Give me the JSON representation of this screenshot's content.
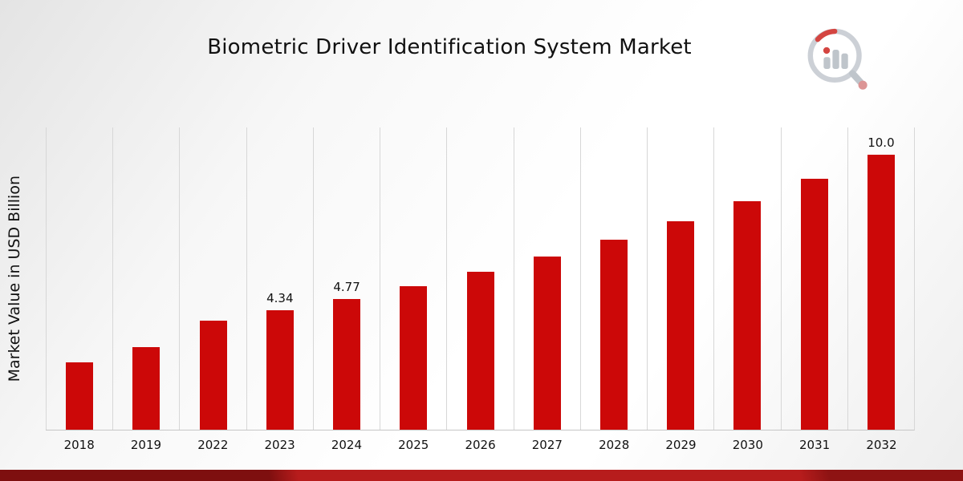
{
  "header": {
    "title": "Biometric Driver Identification System Market"
  },
  "chart_data": {
    "type": "bar",
    "title": "Biometric Driver Identification System Market",
    "xlabel": "",
    "ylabel": "Market Value in USD Billion",
    "categories": [
      "2018",
      "2019",
      "2022",
      "2023",
      "2024",
      "2025",
      "2026",
      "2027",
      "2028",
      "2029",
      "2030",
      "2031",
      "2032"
    ],
    "values": [
      2.45,
      3.0,
      3.96,
      4.34,
      4.77,
      5.23,
      5.74,
      6.3,
      6.91,
      7.58,
      8.31,
      9.12,
      10.0
    ],
    "data_labels": [
      "",
      "",
      "",
      "4.34",
      "4.77",
      "",
      "",
      "",
      "",
      "",
      "",
      "",
      "10.0"
    ],
    "ylim": [
      0,
      11
    ],
    "bar_color": "#cc0808",
    "grid": "vertical-only",
    "legend": "none"
  },
  "footer": {
    "ribbon_colors": [
      "#7e0f0f",
      "#b71c1c",
      "#8e1313"
    ]
  },
  "logo": {
    "label": "market-research-chart-logo"
  }
}
